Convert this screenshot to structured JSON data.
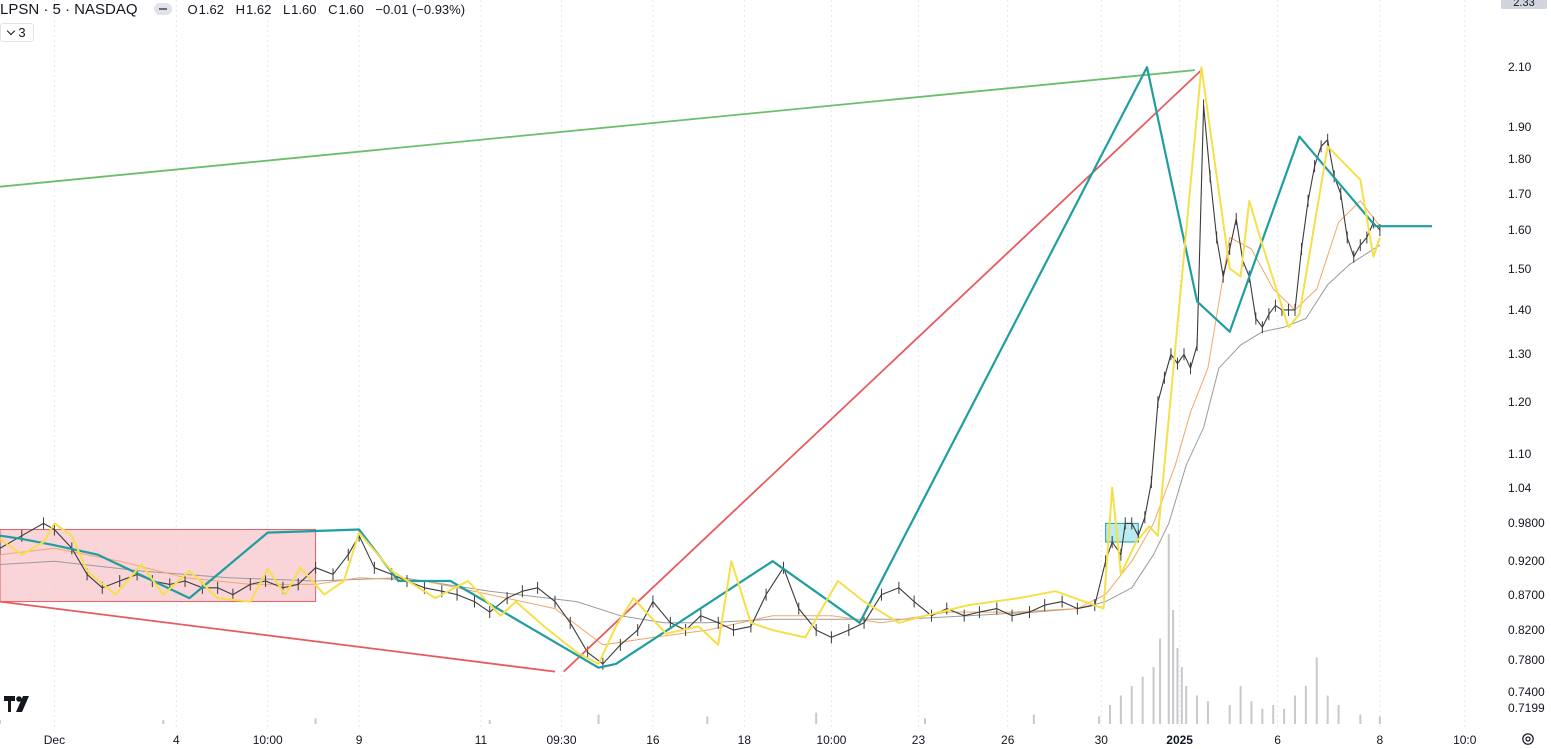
{
  "header": {
    "symbol": "LPSN · 5 · NASDAQ",
    "o_label": "O",
    "o_value": "1.62",
    "h_label": "H",
    "h_value": "1.62",
    "l_label": "L",
    "l_value": "1.60",
    "c_label": "C",
    "c_value": "1.60",
    "change": "−0.01 (−0.93%)",
    "indicator_count": "3"
  },
  "price_tag": "2.33",
  "colors": {
    "zigzag_yellow": "#f5e04a",
    "zigzag_teal": "#1f9ea0",
    "trend_green": "#6cbf6a",
    "trend_red": "#e85a5e",
    "box_red_fill": "#f7c6cb",
    "box_red_stroke": "#e06068",
    "box_cyan_fill": "#a8e6ec",
    "ma_orange": "#f0a868",
    "ma_gray": "#9b9b9b",
    "candle": "#3b3b3b",
    "volume": "#c8c9cd"
  },
  "icons": {
    "logo": "tradingview-logo-icon",
    "settings": "settings-gear-icon",
    "collapse": "chevron-down-icon"
  },
  "chart_data": {
    "type": "line",
    "scale": "log",
    "grid": "vertical dotted",
    "y_tick_labels": [
      "2.10",
      "1.90",
      "1.80",
      "1.70",
      "1.60",
      "1.50",
      "1.40",
      "1.30",
      "1.20",
      "1.10",
      "1.04",
      "0.9800",
      "0.9200",
      "0.8700",
      "0.8200",
      "0.7800",
      "0.7400",
      "0.7199"
    ],
    "y_ticks": [
      2.1,
      1.9,
      1.8,
      1.7,
      1.6,
      1.5,
      1.4,
      1.3,
      1.2,
      1.1,
      1.04,
      0.98,
      0.92,
      0.87,
      0.82,
      0.78,
      0.74,
      0.7199
    ],
    "x_tick_labels": [
      "Dec",
      "4",
      "10:00",
      "9",
      "11",
      "09:30",
      "16",
      "18",
      "10:00",
      "23",
      "26",
      "30",
      "2025",
      "6",
      "8",
      "10:0"
    ],
    "x_tick_bold": [
      false,
      false,
      false,
      false,
      false,
      false,
      false,
      false,
      false,
      false,
      false,
      false,
      true,
      false,
      false,
      false
    ],
    "x_ticks": [
      0,
      56,
      98,
      140,
      196,
      233,
      275,
      317,
      357,
      397,
      438,
      481,
      517,
      562,
      609,
      648
    ],
    "ylim": [
      0.7199,
      2.33
    ],
    "xlim": [
      -25,
      655
    ],
    "last_price": 1.6,
    "series": [
      {
        "role": "price",
        "x": [
          -25,
          -15,
          -5,
          0,
          8,
          15,
          22,
          30,
          38,
          45,
          53,
          60,
          68,
          75,
          82,
          90,
          97,
          105,
          112,
          120,
          128,
          135,
          140,
          147,
          155,
          162,
          170,
          178,
          185,
          193,
          200,
          208,
          215,
          222,
          230,
          237,
          245,
          252,
          260,
          268,
          275,
          283,
          290,
          297,
          305,
          312,
          320,
          327,
          335,
          342,
          350,
          357,
          365,
          372,
          380,
          388,
          395,
          403,
          410,
          418,
          425,
          433,
          440,
          448,
          455,
          463,
          470,
          478,
          483,
          486,
          490,
          492,
          495,
          498,
          501,
          504,
          507,
          510,
          513,
          516,
          519,
          522,
          525,
          528,
          531,
          534,
          537,
          540,
          543,
          546,
          549,
          552,
          555,
          558,
          561,
          564,
          567,
          570,
          573,
          576,
          579,
          582,
          585,
          588,
          591,
          594,
          597,
          600,
          603,
          606,
          609
        ],
        "y": [
          0.94,
          0.96,
          0.98,
          0.97,
          0.94,
          0.9,
          0.88,
          0.89,
          0.9,
          0.89,
          0.885,
          0.89,
          0.88,
          0.88,
          0.87,
          0.885,
          0.89,
          0.88,
          0.885,
          0.91,
          0.9,
          0.93,
          0.96,
          0.91,
          0.9,
          0.89,
          0.88,
          0.875,
          0.87,
          0.86,
          0.845,
          0.865,
          0.875,
          0.88,
          0.86,
          0.83,
          0.79,
          0.775,
          0.8,
          0.82,
          0.86,
          0.83,
          0.82,
          0.84,
          0.83,
          0.82,
          0.825,
          0.87,
          0.91,
          0.85,
          0.82,
          0.81,
          0.82,
          0.83,
          0.87,
          0.88,
          0.86,
          0.84,
          0.85,
          0.84,
          0.845,
          0.85,
          0.84,
          0.845,
          0.855,
          0.86,
          0.85,
          0.855,
          0.92,
          0.95,
          0.93,
          0.98,
          0.98,
          0.96,
          0.99,
          1.05,
          1.2,
          1.25,
          1.3,
          1.28,
          1.3,
          1.27,
          1.32,
          1.97,
          1.75,
          1.58,
          1.48,
          1.55,
          1.63,
          1.52,
          1.48,
          1.38,
          1.36,
          1.39,
          1.41,
          1.4,
          1.4,
          1.4,
          1.55,
          1.68,
          1.78,
          1.84,
          1.86,
          1.75,
          1.7,
          1.58,
          1.53,
          1.56,
          1.58,
          1.62,
          1.6
        ]
      },
      {
        "role": "ma-fast",
        "x": [
          -25,
          0,
          30,
          60,
          90,
          120,
          140,
          170,
          200,
          230,
          252,
          275,
          300,
          330,
          357,
          380,
          410,
          440,
          470,
          483,
          495,
          505,
          515,
          522,
          530,
          540,
          550,
          560,
          570,
          580,
          590,
          600,
          609
        ],
        "y": [
          0.93,
          0.94,
          0.92,
          0.895,
          0.885,
          0.885,
          0.895,
          0.89,
          0.87,
          0.85,
          0.8,
          0.81,
          0.82,
          0.84,
          0.84,
          0.83,
          0.845,
          0.845,
          0.85,
          0.87,
          0.92,
          0.98,
          1.08,
          1.18,
          1.27,
          1.58,
          1.55,
          1.45,
          1.4,
          1.45,
          1.62,
          1.68,
          1.61
        ]
      },
      {
        "role": "ma-slow",
        "x": [
          -25,
          0,
          40,
          80,
          120,
          160,
          200,
          240,
          260,
          280,
          300,
          330,
          360,
          390,
          420,
          450,
          470,
          483,
          495,
          505,
          512,
          520,
          528,
          535,
          545,
          555,
          565,
          575,
          585,
          595,
          609
        ],
        "y": [
          0.915,
          0.92,
          0.905,
          0.895,
          0.89,
          0.895,
          0.875,
          0.86,
          0.84,
          0.83,
          0.83,
          0.835,
          0.835,
          0.835,
          0.84,
          0.845,
          0.85,
          0.86,
          0.88,
          0.93,
          0.98,
          1.08,
          1.15,
          1.27,
          1.32,
          1.35,
          1.36,
          1.38,
          1.46,
          1.51,
          1.56
        ]
      },
      {
        "role": "zigzag-minor",
        "x": [
          -25,
          -15,
          -5,
          0,
          8,
          15,
          28,
          40,
          50,
          62,
          75,
          90,
          98,
          106,
          113,
          124,
          133,
          140,
          155,
          175,
          190,
          205,
          212,
          225,
          240,
          250,
          258,
          266,
          281,
          296,
          305,
          311,
          320,
          330,
          345,
          360,
          372,
          388,
          400,
          420,
          443,
          460,
          482,
          486,
          490,
          497,
          503,
          507,
          527,
          540,
          545,
          549,
          555,
          567,
          572,
          585,
          600,
          606,
          609
        ],
        "y": [
          0.955,
          0.93,
          0.95,
          0.98,
          0.96,
          0.905,
          0.87,
          0.915,
          0.87,
          0.905,
          0.865,
          0.86,
          0.908,
          0.87,
          0.91,
          0.87,
          0.89,
          0.965,
          0.905,
          0.865,
          0.89,
          0.84,
          0.86,
          0.825,
          0.79,
          0.775,
          0.825,
          0.865,
          0.815,
          0.825,
          0.8,
          0.92,
          0.83,
          0.82,
          0.81,
          0.89,
          0.86,
          0.83,
          0.84,
          0.855,
          0.865,
          0.875,
          0.85,
          1.04,
          0.9,
          0.95,
          0.975,
          0.96,
          2.1,
          1.5,
          1.48,
          1.68,
          1.56,
          1.36,
          1.39,
          1.84,
          1.74,
          1.53,
          1.58
        ]
      },
      {
        "role": "zigzag-major",
        "x": [
          -25,
          -15,
          0,
          20,
          62,
          98,
          140,
          158,
          182,
          250,
          258,
          330,
          370,
          502,
          525,
          540,
          572,
          607,
          633
        ],
        "y": [
          0.96,
          0.955,
          0.945,
          0.93,
          0.865,
          0.965,
          0.97,
          0.89,
          0.89,
          0.77,
          0.775,
          0.92,
          0.83,
          2.1,
          1.42,
          1.35,
          1.87,
          1.61,
          1.61
        ]
      },
      {
        "role": "trendline-upper",
        "x": [
          -25,
          524
        ],
        "y": [
          1.72,
          2.09
        ]
      },
      {
        "role": "trendline-lower",
        "x": [
          -25,
          230
        ],
        "y": [
          0.86,
          0.765
        ]
      },
      {
        "role": "trendline-rising",
        "x": [
          234,
          527
        ],
        "y": [
          0.765,
          2.09
        ]
      }
    ],
    "zones": [
      {
        "role": "range-red",
        "x0": -25,
        "x1": 120,
        "y_top": 0.97,
        "y_bottom": 0.86
      },
      {
        "role": "range-cyan",
        "x0": 483,
        "x1": 498,
        "y_top": 0.98,
        "y_bottom": 0.95
      }
    ],
    "volume": {
      "x": [
        -25,
        50,
        120,
        200,
        250,
        300,
        350,
        400,
        450,
        480,
        485,
        490,
        495,
        500,
        505,
        508,
        512,
        514,
        516,
        518,
        520,
        525,
        530,
        540,
        545,
        550,
        555,
        560,
        565,
        570,
        575,
        580,
        585,
        590,
        600,
        609
      ],
      "v": [
        0.02,
        0.02,
        0.03,
        0.02,
        0.05,
        0.04,
        0.06,
        0.03,
        0.05,
        0.04,
        0.1,
        0.15,
        0.2,
        0.25,
        0.3,
        0.45,
        1.0,
        0.6,
        0.4,
        0.3,
        0.2,
        0.15,
        0.12,
        0.1,
        0.2,
        0.12,
        0.08,
        0.1,
        0.08,
        0.15,
        0.2,
        0.35,
        0.15,
        0.1,
        0.05,
        0.04
      ]
    }
  }
}
